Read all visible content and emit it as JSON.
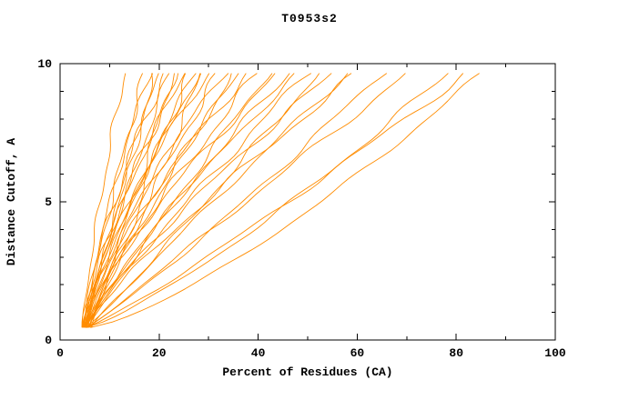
{
  "chart_data": {
    "type": "line",
    "title": "T0953s2",
    "xlabel": "Percent of Residues (CA)",
    "ylabel": "Distance Cutoff, A",
    "xlim": [
      0,
      100
    ],
    "ylim": [
      0,
      10
    ],
    "x_ticks": [
      0,
      20,
      40,
      60,
      80,
      100
    ],
    "x_minor_ticks": [
      10,
      30,
      50,
      70,
      90
    ],
    "y_ticks": [
      0,
      5,
      10
    ],
    "y_minor_ticks": [
      1,
      2,
      3,
      4,
      6,
      7,
      8,
      9
    ],
    "grid": false,
    "legend": "none",
    "line_color": "#ff8c00",
    "axis_color": "#000000",
    "background": "#ffffff",
    "curve_y_start": 0.45,
    "curve_y_end": 9.65,
    "series": [
      {
        "x_start": 4.6,
        "x_end": 13,
        "power": 1.25,
        "amp": 0.5,
        "seed": 1
      },
      {
        "x_start": 5.0,
        "x_end": 17,
        "power": 1.15,
        "amp": 0.6,
        "seed": 2
      },
      {
        "x_start": 4.8,
        "x_end": 18,
        "power": 1.3,
        "amp": 0.5,
        "seed": 3
      },
      {
        "x_start": 5.2,
        "x_end": 19,
        "power": 1.05,
        "amp": 0.7,
        "seed": 4
      },
      {
        "x_start": 5.5,
        "x_end": 20,
        "power": 1.2,
        "amp": 0.6,
        "seed": 5
      },
      {
        "x_start": 4.6,
        "x_end": 21,
        "power": 1.35,
        "amp": 0.8,
        "seed": 6
      },
      {
        "x_start": 5.0,
        "x_end": 22,
        "power": 1.1,
        "amp": 0.5,
        "seed": 7
      },
      {
        "x_start": 5.8,
        "x_end": 23,
        "power": 0.95,
        "amp": 0.7,
        "seed": 8
      },
      {
        "x_start": 4.4,
        "x_end": 24,
        "power": 1.25,
        "amp": 0.9,
        "seed": 9
      },
      {
        "x_start": 5.3,
        "x_end": 25,
        "power": 1.4,
        "amp": 0.6,
        "seed": 10
      },
      {
        "x_start": 6.0,
        "x_end": 26,
        "power": 1.05,
        "amp": 0.8,
        "seed": 11
      },
      {
        "x_start": 4.9,
        "x_end": 27,
        "power": 1.2,
        "amp": 0.5,
        "seed": 12
      },
      {
        "x_start": 5.6,
        "x_end": 28,
        "power": 1.3,
        "amp": 0.7,
        "seed": 13
      },
      {
        "x_start": 4.7,
        "x_end": 29,
        "power": 1.0,
        "amp": 0.9,
        "seed": 14
      },
      {
        "x_start": 5.1,
        "x_end": 30,
        "power": 1.45,
        "amp": 0.6,
        "seed": 15
      },
      {
        "x_start": 5.9,
        "x_end": 32,
        "power": 1.15,
        "amp": 0.8,
        "seed": 16
      },
      {
        "x_start": 4.5,
        "x_end": 33,
        "power": 1.3,
        "amp": 0.7,
        "seed": 17
      },
      {
        "x_start": 5.4,
        "x_end": 35,
        "power": 1.1,
        "amp": 0.9,
        "seed": 18
      },
      {
        "x_start": 6.2,
        "x_end": 36,
        "power": 1.25,
        "amp": 0.6,
        "seed": 19
      },
      {
        "x_start": 4.8,
        "x_end": 38,
        "power": 1.35,
        "amp": 0.8,
        "seed": 20
      },
      {
        "x_start": 5.0,
        "x_end": 40,
        "power": 1.2,
        "amp": 1.0,
        "seed": 21
      },
      {
        "x_start": 5.7,
        "x_end": 42,
        "power": 1.05,
        "amp": 0.7,
        "seed": 22
      },
      {
        "x_start": 4.6,
        "x_end": 44,
        "power": 1.3,
        "amp": 0.9,
        "seed": 23
      },
      {
        "x_start": 5.2,
        "x_end": 46,
        "power": 1.15,
        "amp": 0.8,
        "seed": 24
      },
      {
        "x_start": 6.0,
        "x_end": 48,
        "power": 1.25,
        "amp": 0.6,
        "seed": 25
      },
      {
        "x_start": 4.9,
        "x_end": 50,
        "power": 1.1,
        "amp": 1.0,
        "seed": 26
      },
      {
        "x_start": 5.5,
        "x_end": 52,
        "power": 0.95,
        "amp": 0.8,
        "seed": 27
      },
      {
        "x_start": 5.0,
        "x_end": 55,
        "power": 1.2,
        "amp": 0.9,
        "seed": 28
      },
      {
        "x_start": 6.1,
        "x_end": 58,
        "power": 1.05,
        "amp": 0.7,
        "seed": 29
      },
      {
        "x_start": 4.7,
        "x_end": 60,
        "power": 1.15,
        "amp": 1.0,
        "seed": 30
      },
      {
        "x_start": 5.3,
        "x_end": 65,
        "power": 0.9,
        "amp": 0.8,
        "seed": 31
      },
      {
        "x_start": 5.8,
        "x_end": 70,
        "power": 1.0,
        "amp": 0.9,
        "seed": 32
      },
      {
        "x_start": 5.0,
        "x_end": 78,
        "power": 0.8,
        "amp": 0.8,
        "seed": 33
      },
      {
        "x_start": 5.5,
        "x_end": 82,
        "power": 0.9,
        "amp": 0.9,
        "seed": 34
      },
      {
        "x_start": 6.0,
        "x_end": 85,
        "power": 0.75,
        "amp": 0.7,
        "seed": 35
      }
    ]
  }
}
